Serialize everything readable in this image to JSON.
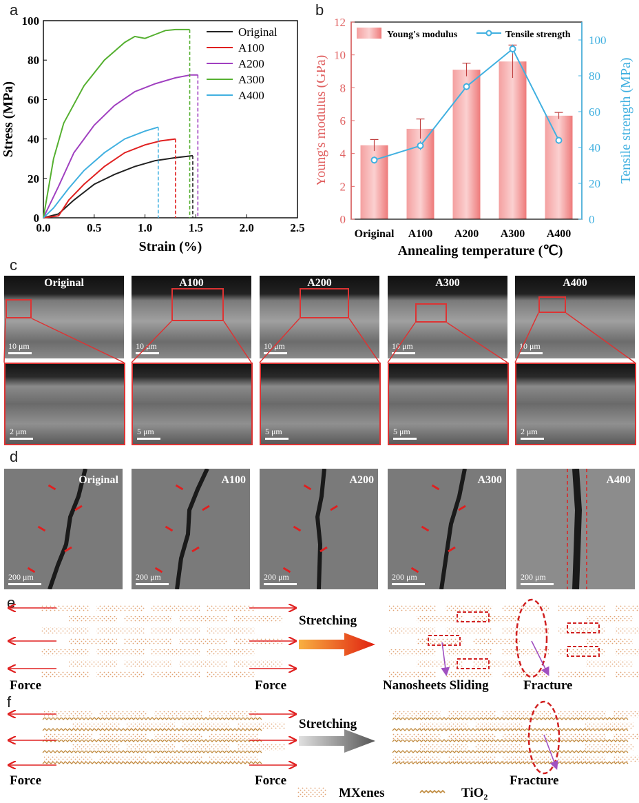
{
  "panels": {
    "a": "a",
    "b": "b",
    "c": "c",
    "d": "d",
    "e": "e",
    "f": "f"
  },
  "chart_data": [
    {
      "type": "line",
      "panel": "a",
      "xlabel": "Strain (%)",
      "ylabel": "Stress (MPa)",
      "xlim": [
        0,
        2.5
      ],
      "ylim": [
        0,
        100
      ],
      "xticks": [
        "0.0",
        "0.5",
        "1.0",
        "1.5",
        "2.0",
        "2.5"
      ],
      "yticks": [
        "0",
        "20",
        "40",
        "60",
        "80",
        "100"
      ],
      "legend_position": "top-right",
      "series": [
        {
          "name": "Original",
          "color": "#222222",
          "x": [
            0,
            0.15,
            0.3,
            0.5,
            0.7,
            0.9,
            1.1,
            1.3,
            1.47
          ],
          "y": [
            0,
            2,
            9,
            17,
            22,
            26,
            29,
            30.5,
            31.5
          ],
          "fracture_x": 1.47
        },
        {
          "name": "A100",
          "color": "#e02020",
          "x": [
            0,
            0.15,
            0.25,
            0.4,
            0.6,
            0.8,
            1.0,
            1.15,
            1.3
          ],
          "y": [
            0,
            1,
            9,
            17,
            26,
            33,
            37,
            39,
            40
          ],
          "fracture_x": 1.3
        },
        {
          "name": "A200",
          "color": "#a040c0",
          "x": [
            0,
            0.15,
            0.3,
            0.5,
            0.7,
            0.9,
            1.1,
            1.3,
            1.45,
            1.52
          ],
          "y": [
            0,
            16,
            33,
            47,
            57,
            64,
            68,
            71,
            72.5,
            72.5
          ],
          "fracture_x": 1.52
        },
        {
          "name": "A300",
          "color": "#55b030",
          "x": [
            0,
            0.1,
            0.2,
            0.4,
            0.6,
            0.8,
            0.9,
            1.0,
            1.1,
            1.2,
            1.3,
            1.44
          ],
          "y": [
            0,
            30,
            48,
            67,
            80,
            89,
            92,
            91,
            93,
            95,
            95.5,
            95.5
          ],
          "fracture_x": 1.44
        },
        {
          "name": "A400",
          "color": "#40b0e0",
          "x": [
            0,
            0.1,
            0.25,
            0.4,
            0.6,
            0.8,
            1.0,
            1.13
          ],
          "y": [
            0,
            5,
            15,
            24,
            33,
            40,
            44,
            46
          ],
          "fracture_x": 1.13
        }
      ]
    },
    {
      "type": "bar",
      "panel": "b",
      "xlabel": "Annealing temperature (℃)",
      "ylabel": "Young's modulus (GPa)",
      "ylabel_right": "Tensile strength (MPa)",
      "categories": [
        "Original",
        "A100",
        "A200",
        "A300",
        "A400"
      ],
      "ylim": [
        0,
        12
      ],
      "ylim_right": [
        0,
        110
      ],
      "yticks": [
        "0",
        "2",
        "4",
        "6",
        "8",
        "10",
        "12"
      ],
      "yticks_right": [
        "0",
        "20",
        "40",
        "60",
        "80",
        "100"
      ],
      "legend_position": "top",
      "bar_color": "#f08080",
      "line_color": "#40b0e0",
      "series": [
        {
          "name": "Young's modulus",
          "values": [
            4.5,
            5.5,
            9.1,
            9.6,
            6.3
          ],
          "errors": [
            0.35,
            0.6,
            0.4,
            1.0,
            0.2
          ]
        },
        {
          "name": "Tensile strength",
          "values": [
            33,
            41,
            74,
            95,
            44
          ],
          "errors": [
            2,
            2.5,
            2,
            2.5,
            2
          ],
          "axis": "right"
        }
      ]
    }
  ],
  "panel_c": {
    "top": [
      {
        "label": "Original",
        "scale": "10 μm"
      },
      {
        "label": "A100",
        "scale": "10 μm"
      },
      {
        "label": "A200",
        "scale": "10 μm"
      },
      {
        "label": "A300",
        "scale": "10 μm"
      },
      {
        "label": "A400",
        "scale": "10 μm"
      }
    ],
    "bottom_scales": [
      "2 μm",
      "5 μm",
      "5 μm",
      "5 μm",
      "2 μm"
    ]
  },
  "panel_d": {
    "items": [
      {
        "label": "Original",
        "scale": "200 μm"
      },
      {
        "label": "A100",
        "scale": "200 μm"
      },
      {
        "label": "A200",
        "scale": "200 μm"
      },
      {
        "label": "A300",
        "scale": "200 μm"
      },
      {
        "label": "A400",
        "scale": "200 μm"
      }
    ]
  },
  "panel_e": {
    "stretching": "Stretching",
    "force_left": "Force",
    "force_right": "Force",
    "sliding": "Nanosheets Sliding",
    "fracture": "Fracture"
  },
  "panel_f": {
    "stretching": "Stretching",
    "force_left": "Force",
    "force_right": "Force",
    "fracture": "Fracture"
  },
  "legend": {
    "mxenes": "MXenes",
    "tio2": "TiO",
    "tio2_sub": "2"
  },
  "colors": {
    "mxene": "#e0a070",
    "tio2": "#c08a3e",
    "arrow": "#e02020",
    "sliding_box": "#d02020",
    "pointer": "#a050c0"
  }
}
